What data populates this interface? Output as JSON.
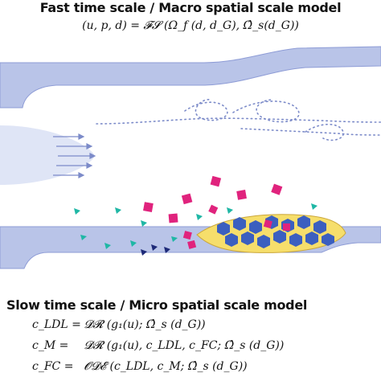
{
  "top_heading": "Fast time scale / Macro spatial scale model",
  "top_equation": "(u, p, d) = 𝓕𝓢 (Ω_f (d, d_G), Ω̂_s(d_G))",
  "bottom_heading": "Slow time scale / Micro spatial scale model",
  "equations": [
    {
      "lhs": "c_LDL =",
      "rhs": "𝓓𝓡 (g₁(u); Ω̂_s (d_G))"
    },
    {
      "lhs": "c_M =",
      "rhs": "𝓓𝓡 (g₁(u), c_LDL, c_FC; Ω̂_s (d_G))"
    },
    {
      "lhs": "c_FC =",
      "rhs": "𝓞𝓓𝓔 (c_LDL, c_M; Ω̂_s (d_G))"
    }
  ],
  "colors": {
    "vessel_wall": "#b9c4e8",
    "vessel_edge": "#8e9cd6",
    "flow_profile": "#dfe5f6",
    "arrows": "#7c8bc9",
    "dots": "#7c8bc9",
    "plaque": "#f6de6b",
    "foam_cells": "#3b5fbf",
    "magenta": "#e0237d",
    "teal": "#1fb7a5",
    "navy": "#1e2a78"
  }
}
